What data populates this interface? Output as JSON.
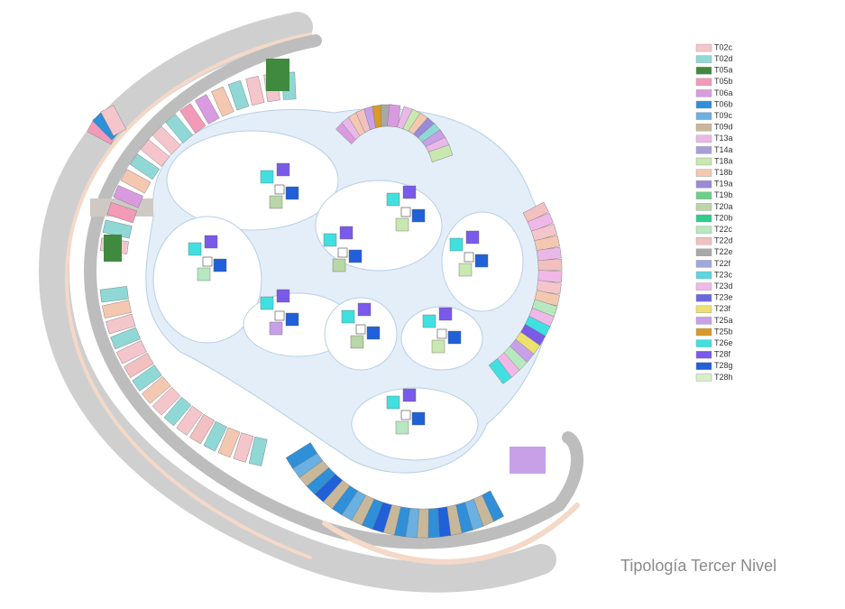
{
  "caption": "Tipología Tercer Nivel",
  "legend": [
    {
      "name": "T02c",
      "color": "#f4c6cc"
    },
    {
      "name": "T02d",
      "color": "#8fd8d6"
    },
    {
      "name": "T05a",
      "color": "#3f8a3f"
    },
    {
      "name": "T05b",
      "color": "#f29ab8"
    },
    {
      "name": "T06a",
      "color": "#d99be0"
    },
    {
      "name": "T06b",
      "color": "#2f8fd8"
    },
    {
      "name": "T09c",
      "color": "#6ab0e0"
    },
    {
      "name": "T09d",
      "color": "#c8b89a"
    },
    {
      "name": "T13a",
      "color": "#eab8e8"
    },
    {
      "name": "T14a",
      "color": "#a7a0d8"
    },
    {
      "name": "T18a",
      "color": "#c8e8b0"
    },
    {
      "name": "T18b",
      "color": "#f4c8b0"
    },
    {
      "name": "T19a",
      "color": "#9a8ad8"
    },
    {
      "name": "T19b",
      "color": "#6ccf8a"
    },
    {
      "name": "T20a",
      "color": "#b9d6a6"
    },
    {
      "name": "T20b",
      "color": "#2ecc8f"
    },
    {
      "name": "T22c",
      "color": "#b8e8c0"
    },
    {
      "name": "T22d",
      "color": "#f2c0c0"
    },
    {
      "name": "T22e",
      "color": "#a8a8a8"
    },
    {
      "name": "T22f",
      "color": "#a0a8e0"
    },
    {
      "name": "T23c",
      "color": "#5cd6e0"
    },
    {
      "name": "T23d",
      "color": "#f0b8e8"
    },
    {
      "name": "T23e",
      "color": "#6a6ae0"
    },
    {
      "name": "T23f",
      "color": "#ece070"
    },
    {
      "name": "T25a",
      "color": "#c8a0e8"
    },
    {
      "name": "T25b",
      "color": "#d89a2a"
    },
    {
      "name": "T26e",
      "color": "#40e0e0"
    },
    {
      "name": "T28f",
      "color": "#7a5ae8"
    },
    {
      "name": "T28g",
      "color": "#2060d8"
    },
    {
      "name": "T28h",
      "color": "#d8f0c8"
    }
  ]
}
